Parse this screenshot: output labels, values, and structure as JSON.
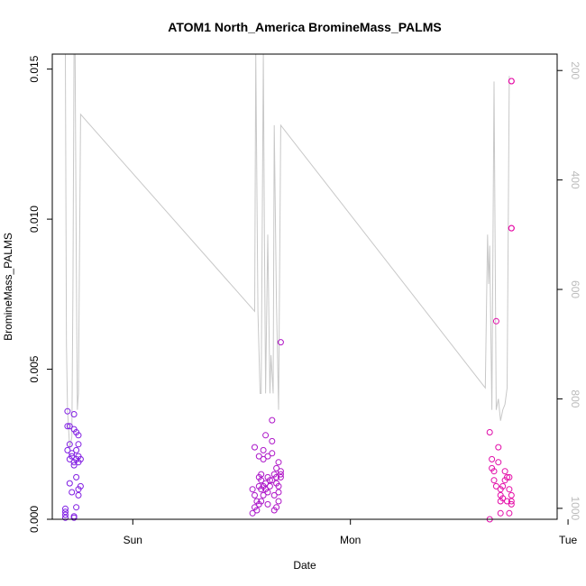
{
  "chart_data": {
    "type": "scatter",
    "title": "ATOM1 North_America BromineMass_PALMS",
    "xlabel": "Date",
    "ylabel": "BromineMass_PALMS",
    "x_ticks": [
      "Sun",
      "Mon",
      "Tue"
    ],
    "y_ticks": [
      "0.000",
      "0.005",
      "0.010",
      "0.015"
    ],
    "y2_ticks": [
      "200",
      "400",
      "600",
      "800",
      "1000"
    ],
    "xlim_days": [
      -0.37,
      1.95
    ],
    "ylim": [
      0,
      0.0155
    ],
    "y2lim": [
      1020,
      170
    ],
    "y2_reversed": true,
    "colors": {
      "axis": "#000000",
      "pressure_line": "#c8c8c8",
      "y2_tick_text": "#bbbbbb",
      "points_start": "#7b1ee6",
      "points_end": "#f00aa0"
    },
    "series": [
      {
        "values": [
          [
            -0.31,
            0.00025
          ],
          [
            -0.31,
            0.00035
          ],
          [
            -0.31,
            0.00015
          ],
          [
            -0.31,
            5e-05
          ],
          [
            -0.3,
            0.0031
          ],
          [
            -0.3,
            0.0036
          ],
          [
            -0.3,
            0.0023
          ],
          [
            -0.29,
            0.002
          ],
          [
            -0.29,
            0.0025
          ],
          [
            -0.29,
            0.0031
          ],
          [
            -0.29,
            0.0012
          ],
          [
            -0.28,
            0.0022
          ],
          [
            -0.28,
            0.0009
          ],
          [
            -0.28,
            0.0021
          ],
          [
            -0.27,
            0.003
          ],
          [
            -0.27,
            0.0035
          ],
          [
            -0.27,
            0.0018
          ],
          [
            -0.27,
            0.0019
          ],
          [
            -0.27,
            5e-05
          ],
          [
            -0.27,
            0.0001
          ],
          [
            -0.26,
            0.0023
          ],
          [
            -0.26,
            0.0029
          ],
          [
            -0.26,
            0.002
          ],
          [
            -0.26,
            0.0014
          ],
          [
            -0.26,
            0.0004
          ],
          [
            -0.25,
            0.0025
          ],
          [
            -0.25,
            0.0021
          ],
          [
            -0.25,
            0.0019
          ],
          [
            -0.25,
            0.0028
          ],
          [
            -0.25,
            0.001
          ],
          [
            -0.25,
            0.0008
          ],
          [
            -0.24,
            0.002
          ],
          [
            -0.24,
            0.0011
          ],
          [
            0.55,
            0.001
          ],
          [
            0.55,
            0.0002
          ],
          [
            0.56,
            0.0008
          ],
          [
            0.56,
            0.0004
          ],
          [
            0.56,
            0.0024
          ],
          [
            0.57,
            0.0006
          ],
          [
            0.57,
            0.0003
          ],
          [
            0.58,
            0.0011
          ],
          [
            0.58,
            0.0014
          ],
          [
            0.58,
            0.0021
          ],
          [
            0.58,
            0.0005
          ],
          [
            0.59,
            0.001
          ],
          [
            0.59,
            0.0015
          ],
          [
            0.59,
            0.0013
          ],
          [
            0.59,
            0.0006
          ],
          [
            0.6,
            0.0011
          ],
          [
            0.6,
            0.002
          ],
          [
            0.6,
            0.0023
          ],
          [
            0.6,
            0.0008
          ],
          [
            0.61,
            0.0012
          ],
          [
            0.61,
            0.0028
          ],
          [
            0.61,
            0.001
          ],
          [
            0.62,
            0.0014
          ],
          [
            0.62,
            0.0009
          ],
          [
            0.62,
            0.0005
          ],
          [
            0.62,
            0.0021
          ],
          [
            0.63,
            0.0013
          ],
          [
            0.63,
            0.0011
          ],
          [
            0.64,
            0.0033
          ],
          [
            0.64,
            0.0026
          ],
          [
            0.64,
            0.0022
          ],
          [
            0.64,
            0.0013
          ],
          [
            0.65,
            0.0015
          ],
          [
            0.65,
            0.0008
          ],
          [
            0.65,
            0.0003
          ],
          [
            0.66,
            0.0014
          ],
          [
            0.66,
            0.0017
          ],
          [
            0.66,
            0.0012
          ],
          [
            0.66,
            0.0004
          ],
          [
            0.67,
            0.0019
          ],
          [
            0.67,
            0.0011
          ],
          [
            0.67,
            0.0009
          ],
          [
            0.67,
            0.0006
          ],
          [
            0.68,
            0.0015
          ],
          [
            0.68,
            0.0016
          ],
          [
            0.68,
            0.0014
          ],
          [
            0.68,
            0.0059
          ],
          [
            1.64,
            0.0029
          ],
          [
            1.64,
            0.0
          ],
          [
            1.65,
            0.002
          ],
          [
            1.65,
            0.0017
          ],
          [
            1.66,
            0.0016
          ],
          [
            1.66,
            0.0013
          ],
          [
            1.67,
            0.0066
          ],
          [
            1.67,
            0.0011
          ],
          [
            1.68,
            0.0019
          ],
          [
            1.68,
            0.0024
          ],
          [
            1.69,
            0.001
          ],
          [
            1.69,
            0.0008
          ],
          [
            1.69,
            0.0006
          ],
          [
            1.69,
            0.0002
          ],
          [
            1.7,
            0.0011
          ],
          [
            1.7,
            0.0007
          ],
          [
            1.71,
            0.0016
          ],
          [
            1.71,
            0.0013
          ],
          [
            1.72,
            0.0014
          ],
          [
            1.72,
            0.0006
          ],
          [
            1.73,
            0.0014
          ],
          [
            1.73,
            0.001
          ],
          [
            1.73,
            0.0002
          ],
          [
            1.74,
            0.0008
          ],
          [
            1.74,
            0.0006
          ],
          [
            1.74,
            0.0005
          ],
          [
            1.74,
            0.0097
          ],
          [
            1.74,
            0.0097
          ],
          [
            1.74,
            0.0146
          ],
          [
            1.74,
            0.0146
          ]
        ]
      }
    ],
    "y2_series": {
      "values": [
        [
          -0.31,
          170
        ],
        [
          -0.305,
          700
        ],
        [
          -0.3,
          820
        ],
        [
          -0.29,
          890
        ],
        [
          -0.28,
          870
        ],
        [
          -0.275,
          600
        ],
        [
          -0.27,
          170
        ],
        [
          -0.265,
          170
        ],
        [
          -0.26,
          540
        ],
        [
          -0.255,
          820
        ],
        [
          -0.25,
          790
        ],
        [
          -0.24,
          280
        ],
        [
          0.56,
          640
        ],
        [
          0.565,
          170
        ],
        [
          0.575,
          640
        ],
        [
          0.585,
          790
        ],
        [
          0.59,
          790
        ],
        [
          0.6,
          150
        ],
        [
          0.605,
          500
        ],
        [
          0.61,
          790
        ],
        [
          0.62,
          500
        ],
        [
          0.63,
          790
        ],
        [
          0.635,
          720
        ],
        [
          0.645,
          790
        ],
        [
          0.65,
          300
        ],
        [
          0.66,
          620
        ],
        [
          0.67,
          820
        ],
        [
          0.68,
          300
        ],
        [
          1.62,
          780
        ],
        [
          1.63,
          500
        ],
        [
          1.635,
          590
        ],
        [
          1.64,
          520
        ],
        [
          1.65,
          820
        ],
        [
          1.66,
          220
        ],
        [
          1.67,
          820
        ],
        [
          1.68,
          800
        ],
        [
          1.69,
          840
        ],
        [
          1.7,
          820
        ],
        [
          1.71,
          810
        ],
        [
          1.72,
          780
        ],
        [
          1.73,
          210
        ]
      ]
    }
  }
}
